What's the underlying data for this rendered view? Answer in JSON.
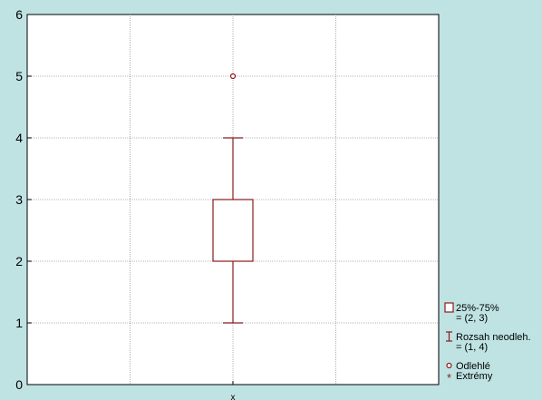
{
  "chart_data": {
    "type": "box",
    "categories": [
      "x"
    ],
    "ylim": [
      0,
      6
    ],
    "yticks": [
      0,
      1,
      2,
      3,
      4,
      5,
      6
    ],
    "grid": true,
    "box": {
      "q1": 2,
      "q3": 3,
      "whisker_low": 1,
      "whisker_high": 4
    },
    "outliers": [
      5
    ],
    "extremes": [],
    "colors": {
      "box": "#8b1a1a",
      "background": "#bfe3e3",
      "plot_bg": "#ffffff",
      "grid": "#a0a0a0"
    },
    "legend": {
      "placement": "bottom-right",
      "entries": [
        {
          "symbol": "box-icon",
          "label": "25%-75%",
          "sub": "= (2, 3)"
        },
        {
          "symbol": "whisker-icon",
          "label": "Rozsah neodleh.",
          "sub": "= (1, 4)"
        },
        {
          "symbol": "circle-icon",
          "label": "Odlehlé",
          "sub": ""
        },
        {
          "symbol": "asterisk-icon",
          "label": "Extrémy",
          "sub": ""
        }
      ]
    }
  }
}
